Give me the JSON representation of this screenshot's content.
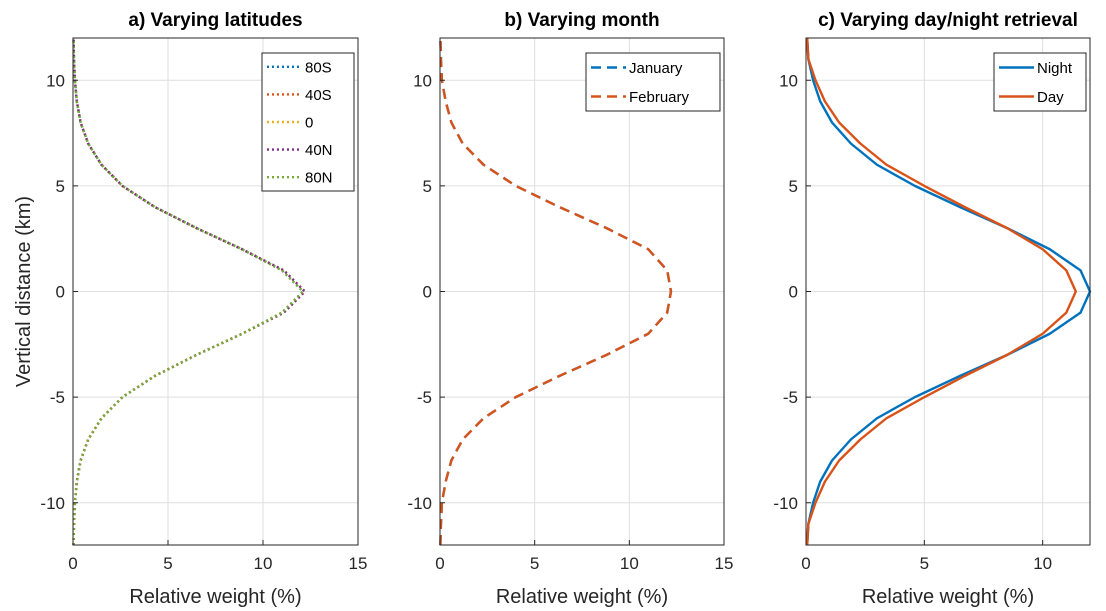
{
  "chart_data": [
    {
      "type": "line",
      "title": "a) Varying latitudes",
      "xlabel": "Relative weight (%)",
      "ylabel": "Vertical distance (km)",
      "xlim": [
        0,
        15
      ],
      "ylim": [
        -12,
        12
      ],
      "xticks": [
        0,
        5,
        10,
        15
      ],
      "yticks": [
        -10,
        -5,
        0,
        5,
        10
      ],
      "grid": true,
      "legend_position": "top-right",
      "line_style": "dotted",
      "y": [
        -12,
        -11,
        -10,
        -9,
        -8,
        -7,
        -6,
        -5,
        -4,
        -3,
        -2,
        -1,
        0,
        1,
        2,
        3,
        4,
        5,
        6,
        7,
        8,
        9,
        10,
        11,
        12
      ],
      "series": [
        {
          "name": "80S",
          "color": "#0072BD",
          "x": [
            0.03,
            0.05,
            0.1,
            0.2,
            0.4,
            0.8,
            1.5,
            2.6,
            4.3,
            6.5,
            8.9,
            11.0,
            12.1,
            11.0,
            8.9,
            6.5,
            4.3,
            2.6,
            1.5,
            0.8,
            0.4,
            0.2,
            0.1,
            0.05,
            0.03
          ]
        },
        {
          "name": "40S",
          "color": "#D95319",
          "x": [
            0.03,
            0.05,
            0.1,
            0.2,
            0.4,
            0.8,
            1.5,
            2.6,
            4.3,
            6.5,
            8.9,
            11.1,
            12.2,
            11.1,
            8.9,
            6.5,
            4.3,
            2.6,
            1.5,
            0.8,
            0.4,
            0.2,
            0.1,
            0.05,
            0.03
          ]
        },
        {
          "name": "0",
          "color": "#EDB120",
          "x": [
            0.03,
            0.05,
            0.1,
            0.2,
            0.4,
            0.8,
            1.5,
            2.6,
            4.3,
            6.5,
            8.9,
            11.1,
            12.2,
            11.1,
            8.9,
            6.5,
            4.3,
            2.6,
            1.5,
            0.8,
            0.4,
            0.2,
            0.1,
            0.05,
            0.03
          ]
        },
        {
          "name": "40N",
          "color": "#7E2F8E",
          "x": [
            0.03,
            0.05,
            0.1,
            0.2,
            0.4,
            0.8,
            1.5,
            2.6,
            4.3,
            6.5,
            8.9,
            11.1,
            12.2,
            11.1,
            8.9,
            6.5,
            4.3,
            2.6,
            1.5,
            0.8,
            0.4,
            0.2,
            0.1,
            0.05,
            0.03
          ]
        },
        {
          "name": "80N",
          "color": "#77AC30",
          "x": [
            0.03,
            0.05,
            0.1,
            0.2,
            0.4,
            0.8,
            1.5,
            2.6,
            4.3,
            6.5,
            8.9,
            11.0,
            12.1,
            11.0,
            8.9,
            6.5,
            4.3,
            2.6,
            1.5,
            0.8,
            0.4,
            0.2,
            0.1,
            0.05,
            0.03
          ]
        }
      ]
    },
    {
      "type": "line",
      "title": "b) Varying month",
      "xlabel": "Relative weight (%)",
      "ylabel": "",
      "xlim": [
        0,
        15
      ],
      "ylim": [
        -12,
        12
      ],
      "xticks": [
        0,
        5,
        10,
        15
      ],
      "yticks": [
        -10,
        -5,
        0,
        5,
        10
      ],
      "grid": true,
      "legend_position": "top-right",
      "line_style": "dashed",
      "y": [
        -12,
        -11,
        -10,
        -9,
        -8,
        -7,
        -6,
        -5,
        -4,
        -3,
        -2,
        -1,
        0,
        1,
        2,
        3,
        4,
        5,
        6,
        7,
        8,
        9,
        10,
        11,
        12
      ],
      "series": [
        {
          "name": "January",
          "color": "#0072BD",
          "x": [
            0.02,
            0.05,
            0.1,
            0.3,
            0.6,
            1.2,
            2.3,
            4.0,
            6.3,
            8.8,
            11.0,
            12.0,
            12.2,
            12.0,
            11.0,
            8.8,
            6.3,
            4.0,
            2.3,
            1.2,
            0.6,
            0.3,
            0.1,
            0.05,
            0.02
          ]
        },
        {
          "name": "February",
          "color": "#D95319",
          "x": [
            0.02,
            0.05,
            0.1,
            0.3,
            0.6,
            1.2,
            2.3,
            4.0,
            6.3,
            8.8,
            11.0,
            12.0,
            12.2,
            12.0,
            11.0,
            8.8,
            6.3,
            4.0,
            2.3,
            1.2,
            0.6,
            0.3,
            0.1,
            0.05,
            0.02
          ]
        }
      ]
    },
    {
      "type": "line",
      "title": "c) Varying day/night retrieval",
      "xlabel": "Relative weight (%)",
      "ylabel": "",
      "xlim": [
        0,
        12
      ],
      "ylim": [
        -12,
        12
      ],
      "xticks": [
        0,
        5,
        10
      ],
      "yticks": [
        -10,
        -5,
        0,
        5,
        10
      ],
      "grid": true,
      "legend_position": "top-right",
      "line_style": "solid",
      "y": [
        -12,
        -11,
        -10,
        -9,
        -8,
        -7,
        -6,
        -5,
        -4,
        -3,
        -2,
        -1,
        0,
        1,
        2,
        3,
        4,
        5,
        6,
        7,
        8,
        9,
        10,
        11,
        12
      ],
      "series": [
        {
          "name": "Night",
          "color": "#0072BD",
          "x": [
            0.05,
            0.1,
            0.3,
            0.6,
            1.1,
            1.9,
            3.0,
            4.6,
            6.5,
            8.5,
            10.3,
            11.6,
            12.0,
            11.6,
            10.3,
            8.5,
            6.5,
            4.6,
            3.0,
            1.9,
            1.1,
            0.6,
            0.3,
            0.1,
            0.05
          ]
        },
        {
          "name": "Day",
          "color": "#D95319",
          "x": [
            0.05,
            0.1,
            0.4,
            0.8,
            1.4,
            2.3,
            3.4,
            5.0,
            6.7,
            8.5,
            10.0,
            11.0,
            11.4,
            11.0,
            10.0,
            8.5,
            6.7,
            5.0,
            3.4,
            2.3,
            1.4,
            0.8,
            0.4,
            0.1,
            0.05
          ]
        }
      ]
    }
  ]
}
